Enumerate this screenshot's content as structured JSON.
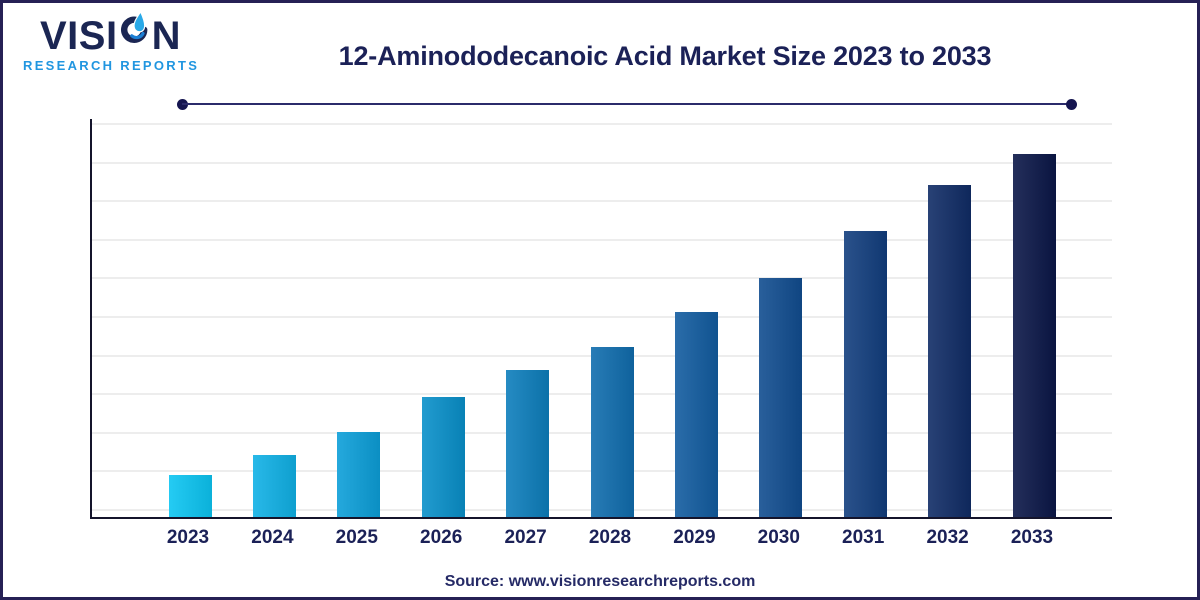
{
  "frame": {
    "border_color": "#262055",
    "background_color": "#ffffff"
  },
  "logo": {
    "name_part1": "VISI",
    "name_part2": "N",
    "tagline": "RESEARCH REPORTS",
    "name_color": "#1B2653",
    "tagline_color": "#2196E0",
    "icons": {
      "logo_o": "droplet-swoosh-icon"
    },
    "icon_colors": {
      "ring": "#1B2653",
      "droplet": "#29A9E8",
      "swoosh": "#1B7FD4"
    }
  },
  "header": {
    "title": "12-Aminododecanoic Acid Market Size 2023 to 2033",
    "title_color": "#1B2157",
    "divider_color": "#2B2B6B"
  },
  "chart_data": {
    "type": "bar",
    "title": "12-Aminododecanoic Acid Market Size 2023 to 2033",
    "categories": [
      "2023",
      "2024",
      "2025",
      "2026",
      "2027",
      "2028",
      "2029",
      "2030",
      "2031",
      "2032",
      "2033"
    ],
    "values": [
      1.1,
      1.6,
      2.2,
      3.1,
      3.8,
      4.4,
      5.3,
      6.2,
      7.4,
      8.6,
      9.4
    ],
    "value_units": "relative gridline units (y-axis is unlabeled in the figure; heights estimated from gridlines)",
    "ylim": [
      0,
      10.3
    ],
    "xlabel": "",
    "ylabel": "",
    "legend": "none",
    "grid": "horizontal",
    "gridline_count": 11,
    "bar_colors": [
      "#0CC5F2",
      "#10B1E6",
      "#0C9FD9",
      "#0990CA",
      "#0D7EBC",
      "#106DAE",
      "#125CA0",
      "#114D90",
      "#123E7E",
      "#102C66",
      "#0B1748"
    ],
    "axis_color": "#14142B",
    "gridline_color": "#EDEDED",
    "tick_label_color": "#1B2157"
  },
  "footer": {
    "source": "Source: www.visionresearchreports.com",
    "source_color": "#252A66"
  }
}
